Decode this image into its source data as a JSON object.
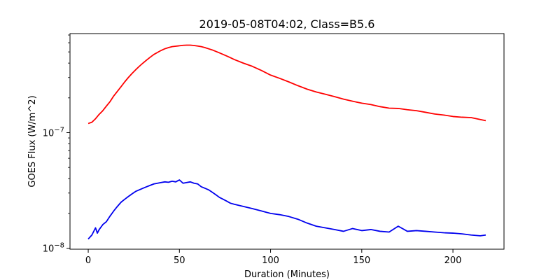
{
  "chart_data": {
    "type": "line",
    "title": "2019-05-08T04:02, Class=B5.6",
    "xlabel": "Duration (Minutes)",
    "ylabel": "GOES Flux (W/m^2)",
    "yscale": "log",
    "xlim": [
      -10,
      228
    ],
    "ylim": [
      9.8e-09,
      7.2e-07
    ],
    "grid": false,
    "legend": "none",
    "x_ticks": [
      {
        "value": 0,
        "label": "0"
      },
      {
        "value": 50,
        "label": "50"
      },
      {
        "value": 100,
        "label": "100"
      },
      {
        "value": 150,
        "label": "150"
      },
      {
        "value": 200,
        "label": "200"
      }
    ],
    "y_ticks": [
      {
        "value": 1e-08,
        "base": "10",
        "exp": "−8"
      },
      {
        "value": 1e-07,
        "base": "10",
        "exp": "−7"
      }
    ],
    "series": [
      {
        "color": "#ff0000",
        "x": [
          0,
          2,
          4,
          6,
          8,
          10,
          12,
          14,
          16,
          18,
          20,
          22,
          24,
          26,
          28,
          30,
          32,
          34,
          36,
          38,
          40,
          42,
          44,
          46,
          48,
          50,
          52,
          54,
          56,
          58,
          60,
          62,
          64,
          66,
          68,
          70,
          72,
          74,
          76,
          78,
          80,
          85,
          90,
          95,
          100,
          105,
          110,
          115,
          120,
          125,
          130,
          135,
          140,
          145,
          150,
          155,
          160,
          165,
          170,
          175,
          180,
          185,
          190,
          195,
          200,
          205,
          210,
          215,
          218
        ],
        "y": [
          1.2e-07,
          1.23e-07,
          1.32e-07,
          1.44e-07,
          1.55e-07,
          1.7e-07,
          1.86e-07,
          2.08e-07,
          2.28e-07,
          2.5e-07,
          2.75e-07,
          3e-07,
          3.25e-07,
          3.5e-07,
          3.75e-07,
          4e-07,
          4.25e-07,
          4.5e-07,
          4.75e-07,
          4.95e-07,
          5.15e-07,
          5.32e-07,
          5.45e-07,
          5.55e-07,
          5.6e-07,
          5.65e-07,
          5.7e-07,
          5.72e-07,
          5.72e-07,
          5.68e-07,
          5.62e-07,
          5.55e-07,
          5.45e-07,
          5.32e-07,
          5.2e-07,
          5.05e-07,
          4.9e-07,
          4.75e-07,
          4.6e-07,
          4.45e-07,
          4.3e-07,
          4e-07,
          3.75e-07,
          3.45e-07,
          3.15e-07,
          2.95e-07,
          2.75e-07,
          2.55e-07,
          2.38e-07,
          2.25e-07,
          2.15e-07,
          2.05e-07,
          1.95e-07,
          1.87e-07,
          1.8e-07,
          1.75e-07,
          1.68e-07,
          1.63e-07,
          1.62e-07,
          1.58e-07,
          1.55e-07,
          1.5e-07,
          1.45e-07,
          1.42e-07,
          1.38e-07,
          1.36e-07,
          1.35e-07,
          1.3e-07,
          1.27e-07
        ]
      },
      {
        "color": "#0000ee",
        "x": [
          0,
          2,
          4,
          5,
          6,
          8,
          10,
          12,
          14,
          16,
          18,
          20,
          22,
          24,
          26,
          28,
          30,
          32,
          34,
          36,
          38,
          40,
          42,
          44,
          46,
          48,
          50,
          52,
          54,
          56,
          58,
          60,
          62,
          64,
          66,
          68,
          70,
          72,
          74,
          76,
          78,
          80,
          85,
          90,
          95,
          100,
          105,
          110,
          115,
          120,
          125,
          130,
          135,
          140,
          145,
          150,
          155,
          160,
          165,
          170,
          175,
          180,
          185,
          190,
          195,
          200,
          205,
          210,
          215,
          218
        ],
        "y": [
          1.2e-08,
          1.3e-08,
          1.5e-08,
          1.35e-08,
          1.45e-08,
          1.6e-08,
          1.7e-08,
          1.9e-08,
          2.1e-08,
          2.3e-08,
          2.5e-08,
          2.65e-08,
          2.8e-08,
          2.95e-08,
          3.1e-08,
          3.2e-08,
          3.3e-08,
          3.4e-08,
          3.5e-08,
          3.6e-08,
          3.65e-08,
          3.7e-08,
          3.75e-08,
          3.72e-08,
          3.8e-08,
          3.75e-08,
          3.9e-08,
          3.65e-08,
          3.7e-08,
          3.75e-08,
          3.65e-08,
          3.6e-08,
          3.4e-08,
          3.3e-08,
          3.2e-08,
          3.05e-08,
          2.9e-08,
          2.75e-08,
          2.65e-08,
          2.55e-08,
          2.45e-08,
          2.4e-08,
          2.3e-08,
          2.2e-08,
          2.1e-08,
          2e-08,
          1.95e-08,
          1.88e-08,
          1.78e-08,
          1.65e-08,
          1.55e-08,
          1.5e-08,
          1.45e-08,
          1.4e-08,
          1.48e-08,
          1.42e-08,
          1.45e-08,
          1.4e-08,
          1.38e-08,
          1.55e-08,
          1.4e-08,
          1.42e-08,
          1.4e-08,
          1.38e-08,
          1.36e-08,
          1.35e-08,
          1.33e-08,
          1.3e-08,
          1.28e-08,
          1.3e-08
        ]
      }
    ]
  }
}
